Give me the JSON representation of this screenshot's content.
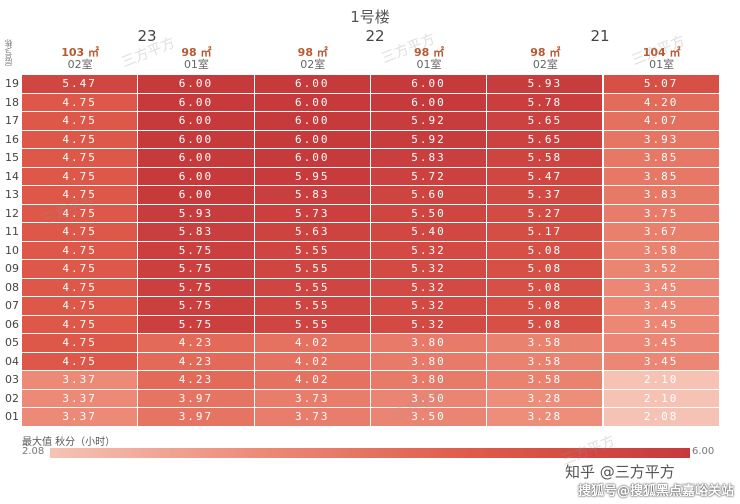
{
  "building_title": "1号楼",
  "floor_groups": [
    "23",
    "22",
    "21"
  ],
  "axis_label": "层号\\栋",
  "columns": [
    {
      "area": "103 ㎡",
      "room": "02室"
    },
    {
      "area": "98 ㎡",
      "room": "01室"
    },
    {
      "area": "98 ㎡",
      "room": "02室"
    },
    {
      "area": "98 ㎡",
      "room": "01室"
    },
    {
      "area": "98 ㎡",
      "room": "02室"
    },
    {
      "area": "104 ㎡",
      "room": "01室"
    }
  ],
  "colors": {
    "min": "#f5c3b5",
    "max": "#c63a3c"
  },
  "chart_data": {
    "type": "heatmap",
    "title": "1号楼",
    "x_groups": [
      "23",
      "22",
      "21"
    ],
    "x_categories": [
      "103 ㎡ 02室",
      "98 ㎡ 01室",
      "98 ㎡ 02室",
      "98 ㎡ 01室",
      "98 ㎡ 02室",
      "104 ㎡ 01室"
    ],
    "y_categories": [
      "19",
      "18",
      "17",
      "16",
      "15",
      "14",
      "13",
      "12",
      "11",
      "10",
      "09",
      "08",
      "07",
      "06",
      "05",
      "04",
      "03",
      "02",
      "01"
    ],
    "values": [
      [
        "5.47",
        "6.00",
        "6.00",
        "6.00",
        "5.93",
        "5.07"
      ],
      [
        "4.75",
        "6.00",
        "6.00",
        "6.00",
        "5.78",
        "4.20"
      ],
      [
        "4.75",
        "6.00",
        "6.00",
        "5.92",
        "5.65",
        "4.07"
      ],
      [
        "4.75",
        "6.00",
        "6.00",
        "5.92",
        "5.65",
        "3.93"
      ],
      [
        "4.75",
        "6.00",
        "6.00",
        "5.83",
        "5.58",
        "3.85"
      ],
      [
        "4.75",
        "6.00",
        "5.95",
        "5.72",
        "5.47",
        "3.85"
      ],
      [
        "4.75",
        "6.00",
        "5.83",
        "5.60",
        "5.37",
        "3.83"
      ],
      [
        "4.75",
        "5.93",
        "5.73",
        "5.50",
        "5.27",
        "3.75"
      ],
      [
        "4.75",
        "5.83",
        "5.63",
        "5.40",
        "5.17",
        "3.67"
      ],
      [
        "4.75",
        "5.75",
        "5.55",
        "5.32",
        "5.08",
        "3.58"
      ],
      [
        "4.75",
        "5.75",
        "5.55",
        "5.32",
        "5.08",
        "3.52"
      ],
      [
        "4.75",
        "5.75",
        "5.55",
        "5.32",
        "5.08",
        "3.45"
      ],
      [
        "4.75",
        "5.75",
        "5.55",
        "5.32",
        "5.08",
        "3.45"
      ],
      [
        "4.75",
        "5.75",
        "5.55",
        "5.32",
        "5.08",
        "3.45"
      ],
      [
        "4.75",
        "4.23",
        "4.02",
        "3.80",
        "3.58",
        "3.45"
      ],
      [
        "4.75",
        "4.23",
        "4.02",
        "3.80",
        "3.58",
        "3.45"
      ],
      [
        "3.37",
        "4.23",
        "4.02",
        "3.80",
        "3.58",
        "2.10"
      ],
      [
        "3.37",
        "3.97",
        "3.73",
        "3.50",
        "3.28",
        "2.10"
      ],
      [
        "3.37",
        "3.97",
        "3.73",
        "3.50",
        "3.28",
        "2.08"
      ]
    ],
    "value_range": [
      2.08,
      6.0
    ],
    "legend": {
      "title": "最大值 秋分（小时）",
      "min_label": "2.08",
      "max_label": "6.00"
    }
  },
  "watermark": "三方平方",
  "credit_line1": "知乎 @三方平方",
  "credit_line2": "搜狐号@搜狐黑点嘉峪关站"
}
